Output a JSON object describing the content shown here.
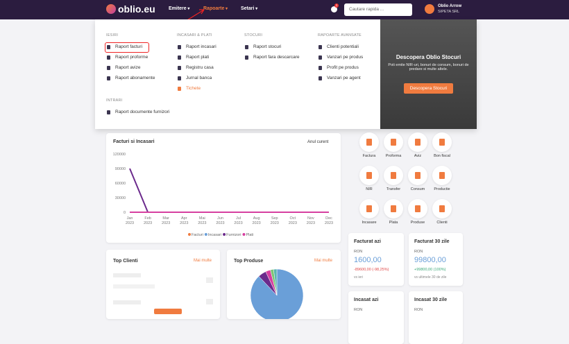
{
  "header": {
    "logo": "oblio.eu",
    "nav": [
      "Emitere",
      "Rapoarte",
      "Setari"
    ],
    "badge": "1",
    "search": "Cautare rapida ...",
    "user": "Oblio Arrow",
    "company": "SIPETA SRL"
  },
  "menu": {
    "columns": [
      {
        "sections": [
          {
            "title": "IESIRI",
            "items": [
              "Raport facturi",
              "Raport proforme",
              "Raport avize",
              "Raport abonamente"
            ]
          },
          {
            "title": "INTRARI",
            "items": [
              "Raport documente furnizori"
            ]
          }
        ]
      },
      {
        "sections": [
          {
            "title": "INCASARI & PLATI",
            "items": [
              "Raport incasari",
              "Raport plati",
              "Registru casa",
              "Jurnal banca",
              "Tichete"
            ]
          }
        ]
      },
      {
        "sections": [
          {
            "title": "STOCURI",
            "items": [
              "Raport stocuri",
              "Raport fara descarcare"
            ]
          }
        ]
      },
      {
        "sections": [
          {
            "title": "RAPOARTE AVANSATE",
            "items": [
              "Clienti potentiali",
              "Vanzari pe produs",
              "Profit pe produs",
              "Vanzari pe agent"
            ]
          }
        ]
      }
    ],
    "promo": {
      "title": "Descopera Oblio Stocuri",
      "text": "Poti emite NIR-uri, bonuri de consum, bonuri de predare si multe altele.",
      "button": "Descopera Stocuri"
    }
  },
  "chart_data": [
    {
      "type": "line",
      "title": "Facturi si Incasari",
      "period": "Anul curent",
      "categories": [
        "Jan\n2023",
        "Feb\n2023",
        "Mar\n2023",
        "Apr\n2023",
        "Mai\n2023",
        "Jun\n2023",
        "Jul\n2023",
        "Aug\n2023",
        "Sep\n2023",
        "Oct\n2023",
        "Nov\n2023",
        "Dec\n2023"
      ],
      "series": [
        {
          "name": "Facturi",
          "color": "#f07b3f",
          "values": [
            0,
            0,
            0,
            0,
            0,
            0,
            0,
            0,
            0,
            0,
            0,
            0
          ]
        },
        {
          "name": "Incasari",
          "color": "#6a9fd8",
          "values": [
            0,
            0,
            0,
            0,
            0,
            0,
            0,
            0,
            0,
            0,
            0,
            0
          ]
        },
        {
          "name": "Furnizori",
          "color": "#6b2a8c",
          "values": [
            90000,
            0,
            0,
            0,
            0,
            0,
            0,
            0,
            0,
            0,
            0,
            0
          ]
        },
        {
          "name": "Plati",
          "color": "#d63fa0",
          "values": [
            0,
            0,
            0,
            0,
            0,
            0,
            0,
            0,
            0,
            0,
            0,
            0
          ]
        }
      ],
      "ylim": [
        0,
        120000
      ],
      "yticks": [
        0,
        30000,
        60000,
        90000,
        120000
      ],
      "grid": false
    },
    {
      "type": "pie",
      "title": "Top Produse",
      "link": "Mai multe",
      "values": [
        88,
        5,
        3,
        2,
        2
      ],
      "colors": [
        "#6a9fd8",
        "#6b2a8c",
        "#d63fa0",
        "#7cc576",
        "#5bb5b0"
      ]
    }
  ],
  "quick_actions": [
    "Factura",
    "Proforma",
    "Aviz",
    "Bon fiscal",
    "NIR",
    "Transfer",
    "Consum",
    "Productie",
    "Incasare",
    "Plata",
    "Produse",
    "Clienti"
  ],
  "stats": [
    {
      "title": "Facturat azi",
      "currency": "RON",
      "value": "1600,00",
      "change": "-89600,00 (-98,25%)",
      "note": "vs ieri"
    },
    {
      "title": "Facturat 30 zile",
      "currency": "RON",
      "value": "99800,00",
      "change": "+99800,00 (100%)",
      "note": "vs ultimele 30 de zile"
    },
    {
      "title": "Incasat azi",
      "currency": "RON"
    },
    {
      "title": "Incasat 30 zile",
      "currency": "RON"
    }
  ],
  "top_clienti": {
    "title": "Top Clienti",
    "link": "Mai multe"
  }
}
